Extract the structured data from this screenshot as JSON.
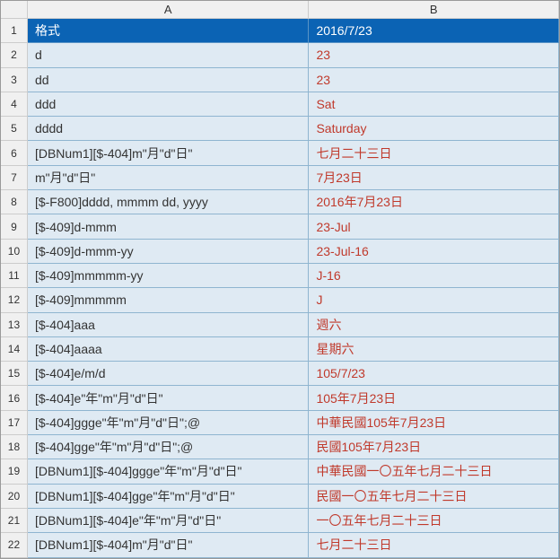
{
  "columns": {
    "a": "A",
    "b": "B"
  },
  "header": {
    "col_a": "格式",
    "col_b": "2016/7/23"
  },
  "rows": [
    {
      "n": "1"
    },
    {
      "n": "2",
      "a": "d",
      "b": "23"
    },
    {
      "n": "3",
      "a": "dd",
      "b": "23"
    },
    {
      "n": "4",
      "a": "ddd",
      "b": "Sat"
    },
    {
      "n": "5",
      "a": "dddd",
      "b": "Saturday"
    },
    {
      "n": "6",
      "a": "[DBNum1][$-404]m\"月\"d\"日\"",
      "b": "七月二十三日"
    },
    {
      "n": "7",
      "a": "m\"月\"d\"日\"",
      "b": "7月23日"
    },
    {
      "n": "8",
      "a": "[$-F800]dddd, mmmm dd, yyyy",
      "b": "2016年7月23日"
    },
    {
      "n": "9",
      "a": "[$-409]d-mmm",
      "b": "23-Jul"
    },
    {
      "n": "10",
      "a": "[$-409]d-mmm-yy",
      "b": "23-Jul-16"
    },
    {
      "n": "11",
      "a": "[$-409]mmmmm-yy",
      "b": "J-16"
    },
    {
      "n": "12",
      "a": "[$-409]mmmmm",
      "b": "J"
    },
    {
      "n": "13",
      "a": "[$-404]aaa",
      "b": "週六"
    },
    {
      "n": "14",
      "a": "[$-404]aaaa",
      "b": "星期六"
    },
    {
      "n": "15",
      "a": "[$-404]e/m/d",
      "b": "105/7/23"
    },
    {
      "n": "16",
      "a": "[$-404]e\"年\"m\"月\"d\"日\"",
      "b": "105年7月23日"
    },
    {
      "n": "17",
      "a": "[$-404]ggge\"年\"m\"月\"d\"日\";@",
      "b": "中華民國105年7月23日"
    },
    {
      "n": "18",
      "a": "[$-404]gge\"年\"m\"月\"d\"日\";@",
      "b": "民國105年7月23日"
    },
    {
      "n": "19",
      "a": "[DBNum1][$-404]ggge\"年\"m\"月\"d\"日\"",
      "b": "中華民國一〇五年七月二十三日"
    },
    {
      "n": "20",
      "a": "[DBNum1][$-404]gge\"年\"m\"月\"d\"日\"",
      "b": "民國一〇五年七月二十三日"
    },
    {
      "n": "21",
      "a": "[DBNum1][$-404]e\"年\"m\"月\"d\"日\"",
      "b": "一〇五年七月二十三日"
    },
    {
      "n": "22",
      "a": "[DBNum1][$-404]m\"月\"d\"日\"",
      "b": "七月二十三日"
    }
  ],
  "style": {
    "header_bg": "#0b63b4",
    "header_fg": "#ffffff",
    "data_bg": "#dfeaf3",
    "data_fg_a": "#333333",
    "data_fg_b": "#c0392b",
    "grid_color": "#8fb5d0",
    "rowhead_bg": "#f0f0f0"
  }
}
